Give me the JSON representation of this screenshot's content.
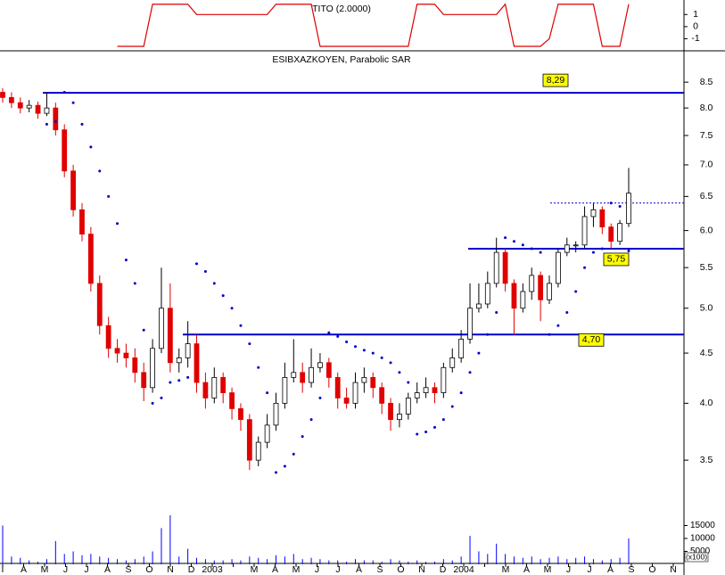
{
  "chart_data": [
    {
      "type": "line",
      "title": "TITO (2.0000)",
      "color": "#dd0000",
      "ylim": [
        -1.85,
        2.2
      ],
      "yticks": [
        1,
        0,
        -1
      ],
      "values": [
        null,
        null,
        null,
        null,
        null,
        null,
        null,
        null,
        null,
        null,
        null,
        null,
        null,
        -1.63,
        -1.63,
        -1.63,
        -1.63,
        1.85,
        1.85,
        1.85,
        1.85,
        1.85,
        1.0,
        1.0,
        1.0,
        1.0,
        1.0,
        1.0,
        1.0,
        1.0,
        1.0,
        1.85,
        1.85,
        1.85,
        1.85,
        1.85,
        -1.63,
        -1.63,
        -1.63,
        -1.63,
        -1.63,
        -1.63,
        -1.63,
        -1.63,
        -1.63,
        -1.63,
        -1.63,
        1.85,
        1.85,
        1.85,
        1.0,
        1.0,
        1.0,
        1.0,
        1.0,
        1.0,
        1.0,
        1.85,
        -1.63,
        -1.63,
        -1.63,
        -1.63,
        -1.0,
        1.85,
        1.85,
        1.85,
        1.85,
        1.85,
        -1.63,
        -1.63,
        -1.63,
        1.85
      ]
    },
    {
      "type": "candlestick",
      "title": "ESIBXAZKOYEN, Parabolic SAR",
      "log_scale": true,
      "up_color": "#ffffff",
      "down_color": "#e00000",
      "categories": [
        "I",
        "A",
        "M",
        "J",
        "J",
        "A",
        "S",
        "O",
        "N",
        "D",
        "2003",
        null,
        "M",
        "A",
        "M",
        "J",
        "J",
        "A",
        "S",
        "O",
        "N",
        "D",
        "2004",
        null,
        "M",
        "A",
        "M",
        "J",
        "J",
        "A",
        "S",
        "O",
        "N"
      ],
      "ylim": [
        3.2,
        9.13
      ],
      "yticks": [
        3.5,
        {
          "value": 4,
          "label": "4.0"
        },
        4.5,
        {
          "value": 5,
          "label": "5.0"
        },
        5.5,
        {
          "value": 6,
          "label": "6.0"
        },
        6.5,
        {
          "value": 7,
          "label": "7.0"
        },
        7.5,
        {
          "value": 8,
          "label": "8.0"
        },
        8.5
      ],
      "open": [
        8.3,
        8.2,
        8.1,
        8.0,
        8.05,
        7.9,
        8.0,
        7.6,
        6.9,
        6.3,
        5.95,
        5.3,
        4.8,
        4.55,
        4.5,
        4.45,
        4.3,
        4.15,
        4.55,
        5.0,
        4.4,
        4.45,
        4.6,
        4.2,
        4.05,
        4.25,
        4.1,
        3.95,
        3.85,
        3.5,
        3.65,
        3.8,
        4.0,
        4.25,
        4.3,
        4.2,
        4.35,
        4.4,
        4.25,
        4.05,
        4.0,
        4.2,
        4.25,
        4.15,
        4.0,
        3.85,
        3.9,
        4.05,
        4.1,
        4.15,
        4.1,
        4.35,
        4.45,
        4.65,
        5.0,
        5.05,
        5.3,
        5.7,
        5.3,
        5.0,
        5.2,
        5.4,
        5.1,
        5.3,
        5.7,
        5.8,
        5.8,
        6.2,
        6.3,
        6.05,
        5.85,
        6.1
      ],
      "high": [
        8.38,
        8.3,
        8.2,
        8.15,
        8.12,
        8.3,
        8.1,
        7.7,
        7.0,
        6.4,
        6.05,
        5.4,
        4.9,
        4.65,
        4.6,
        4.55,
        4.4,
        4.65,
        5.5,
        5.3,
        4.55,
        4.85,
        4.7,
        4.3,
        4.35,
        4.3,
        4.15,
        4.0,
        3.9,
        3.7,
        3.9,
        4.1,
        4.4,
        4.65,
        4.4,
        4.55,
        4.5,
        4.45,
        4.3,
        4.15,
        4.3,
        4.35,
        4.3,
        4.2,
        4.05,
        4.0,
        4.1,
        4.2,
        4.25,
        4.2,
        4.4,
        4.55,
        4.75,
        5.3,
        5.3,
        5.45,
        5.9,
        5.75,
        5.35,
        5.3,
        5.5,
        5.45,
        5.4,
        5.75,
        5.9,
        5.85,
        6.35,
        6.4,
        6.35,
        6.1,
        6.15,
        6.95
      ],
      "low": [
        8.1,
        8.0,
        7.9,
        7.92,
        7.8,
        7.85,
        7.5,
        6.8,
        6.2,
        5.85,
        5.2,
        4.7,
        4.45,
        4.4,
        4.35,
        4.2,
        4.02,
        4.1,
        4.5,
        4.3,
        4.3,
        4.35,
        4.1,
        3.95,
        4.0,
        4.0,
        3.85,
        3.75,
        3.42,
        3.45,
        3.6,
        3.75,
        3.95,
        4.2,
        4.1,
        4.15,
        4.3,
        4.15,
        3.95,
        3.95,
        3.95,
        4.1,
        4.05,
        3.9,
        3.75,
        3.78,
        3.85,
        4.0,
        4.05,
        4.0,
        4.05,
        4.3,
        4.4,
        4.6,
        4.95,
        5.0,
        5.25,
        5.2,
        4.7,
        4.95,
        5.1,
        4.85,
        5.05,
        5.25,
        5.65,
        5.7,
        5.75,
        6.05,
        5.95,
        5.75,
        5.8,
        6.05
      ],
      "close": [
        8.2,
        8.1,
        8.0,
        8.05,
        7.9,
        8.0,
        7.6,
        6.9,
        6.3,
        5.95,
        5.3,
        4.8,
        4.55,
        4.5,
        4.45,
        4.3,
        4.15,
        4.55,
        5.0,
        4.4,
        4.45,
        4.6,
        4.2,
        4.05,
        4.25,
        4.1,
        3.95,
        3.85,
        3.5,
        3.65,
        3.8,
        4.0,
        4.25,
        4.3,
        4.2,
        4.35,
        4.4,
        4.25,
        4.05,
        4.0,
        4.2,
        4.25,
        4.15,
        4.0,
        3.85,
        3.9,
        4.05,
        4.1,
        4.15,
        4.1,
        4.35,
        4.45,
        4.65,
        5.0,
        5.05,
        5.3,
        5.7,
        5.3,
        5.0,
        5.2,
        5.4,
        5.1,
        5.3,
        5.7,
        5.8,
        5.8,
        6.2,
        6.3,
        6.05,
        5.85,
        6.1,
        6.55
      ],
      "sar": {
        "color": "#0000cc",
        "values": [
          null,
          null,
          null,
          null,
          null,
          7.7,
          7.75,
          8.3,
          8.1,
          7.7,
          7.3,
          6.9,
          6.5,
          6.1,
          5.6,
          5.3,
          4.75,
          4.0,
          4.05,
          4.2,
          4.22,
          4.25,
          5.55,
          5.45,
          5.3,
          5.15,
          5.0,
          4.8,
          4.6,
          4.35,
          4.1,
          3.4,
          3.45,
          3.55,
          3.7,
          3.85,
          4.05,
          4.72,
          4.68,
          4.62,
          4.57,
          4.53,
          4.5,
          4.45,
          4.4,
          4.3,
          4.2,
          3.72,
          3.74,
          3.78,
          3.85,
          3.97,
          4.1,
          4.3,
          4.5,
          4.7,
          4.95,
          5.9,
          5.85,
          5.8,
          5.75,
          5.7,
          4.7,
          4.8,
          4.95,
          5.2,
          5.5,
          5.7,
          5.75,
          6.4,
          6.35,
          5.72
        ]
      },
      "levels": [
        {
          "value": 8.29,
          "label": "8,29"
        },
        {
          "value": 4.7,
          "label": "4,70"
        },
        {
          "value": 5.75,
          "label": "5,75"
        }
      ],
      "dashed_levels": [
        6.4
      ],
      "level_color": "#0000cc",
      "volume": {
        "color": "#0000ff",
        "ylim": [
          0,
          20000
        ],
        "yticks": [
          5000,
          10000,
          15000
        ],
        "unit": "(x100)",
        "values": [
          15000,
          3000,
          2500,
          1500,
          1000,
          2000,
          9000,
          4000,
          5000,
          3500,
          4000,
          3000,
          2500,
          2000,
          1500,
          2000,
          3000,
          5000,
          14000,
          19000,
          3000,
          6000,
          2500,
          2000,
          1500,
          1500,
          2000,
          1500,
          3000,
          2500,
          2000,
          3500,
          3000,
          4000,
          2000,
          2500,
          2000,
          1500,
          1500,
          1000,
          2000,
          1500,
          1500,
          1000,
          2000,
          1500,
          1000,
          1500,
          1000,
          1000,
          2000,
          1500,
          3000,
          11000,
          5000,
          4000,
          8000,
          4000,
          3000,
          2500,
          3000,
          2000,
          2500,
          3000,
          2000,
          2500,
          3000,
          2000,
          1500,
          2000,
          2500,
          10000
        ]
      }
    }
  ]
}
